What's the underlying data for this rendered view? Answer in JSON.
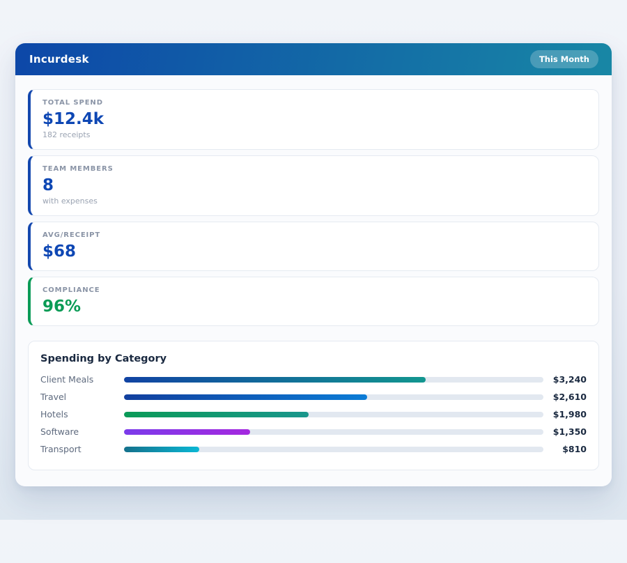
{
  "theme": {
    "header_gradient": [
      "#0D47A8",
      "#1887A5"
    ],
    "blue_accent": "#1347AE",
    "green_accent": "#0B9B57",
    "track_color": "#E2E8F0"
  },
  "header": {
    "title": "Incurdesk",
    "period_badge": "This Month"
  },
  "stats": [
    {
      "label": "TOTAL SPEND",
      "value": "$12.4k",
      "sub": "182 receipts",
      "accent": "#1347AE",
      "value_color": "#0E47B4"
    },
    {
      "label": "TEAM MEMBERS",
      "value": "8",
      "sub": "with expenses",
      "accent": "#1347AE",
      "value_color": "#0E47B4"
    },
    {
      "label": "AVG/RECEIPT",
      "value": "$68",
      "sub": "",
      "accent": "#1347AE",
      "value_color": "#0E47B4"
    },
    {
      "label": "COMPLIANCE",
      "value": "96%",
      "sub": "",
      "accent": "#0B9B57",
      "value_color": "#0A9B55"
    }
  ],
  "spending": {
    "title": "Spending by Category",
    "max_scale": 4500,
    "rows": [
      {
        "label": "Client Meals",
        "value": "$3,240",
        "amount": 3240,
        "percent": 72,
        "gradient": [
          "#1143A3",
          "#12968F"
        ]
      },
      {
        "label": "Travel",
        "value": "$2,610",
        "amount": 2610,
        "percent": 58,
        "gradient": [
          "#123F9E",
          "#0B7CD6"
        ]
      },
      {
        "label": "Hotels",
        "value": "$1,980",
        "amount": 1980,
        "percent": 44,
        "gradient": [
          "#0B9A57",
          "#19968C"
        ]
      },
      {
        "label": "Software",
        "value": "$1,350",
        "amount": 1350,
        "percent": 30,
        "gradient": [
          "#7B3BEA",
          "#A428DF"
        ]
      },
      {
        "label": "Transport",
        "value": "$810",
        "amount": 810,
        "percent": 18,
        "gradient": [
          "#14718C",
          "#0BB7D4"
        ]
      }
    ]
  }
}
